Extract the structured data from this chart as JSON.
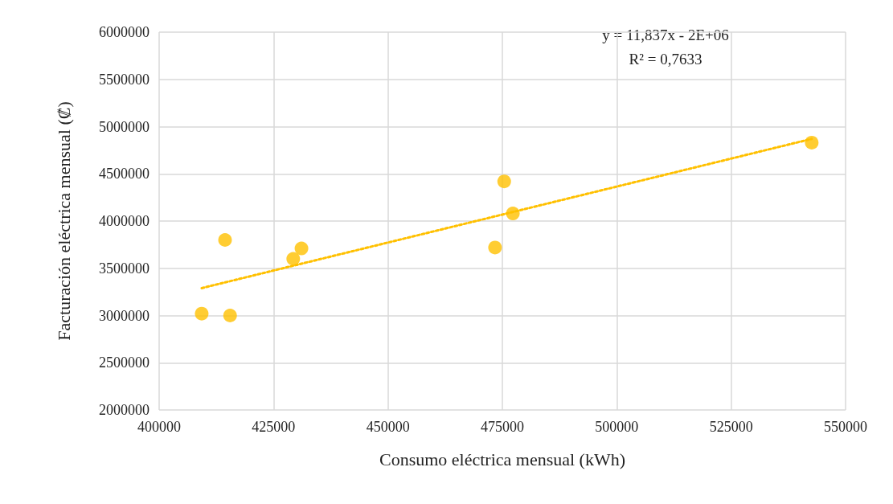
{
  "chart_data": {
    "type": "scatter",
    "xlabel": "Consumo eléctrica mensual (kWh)",
    "ylabel": "Facturación eléctrica mensual (₡)",
    "xlim": [
      400000,
      550000
    ],
    "xticks": [
      400000,
      425000,
      450000,
      475000,
      500000,
      525000,
      550000
    ],
    "ylim": [
      2000000,
      6000000
    ],
    "yticks": [
      2000000,
      2500000,
      3000000,
      3500000,
      4000000,
      4500000,
      5000000,
      5500000,
      6000000
    ],
    "grid": true,
    "marker": "circle",
    "annotations": [
      "y = 11,837x - 2E+06",
      "R² = 0,7633"
    ],
    "series": [
      {
        "color": "#ffc000",
        "x": [
          409300,
          414400,
          415500,
          429300,
          431100,
          473400,
          475400,
          477300,
          542600
        ],
        "values": [
          3020000,
          3800000,
          3000000,
          3600000,
          3710000,
          3720000,
          4420000,
          4080000,
          4830000
        ]
      },
      {
        "type": "line",
        "color": "#ffc000",
        "line_style": "dotted",
        "marker": "none",
        "x": [
          409300,
          542600
        ],
        "values": [
          3290000,
          4870000
        ]
      }
    ]
  }
}
